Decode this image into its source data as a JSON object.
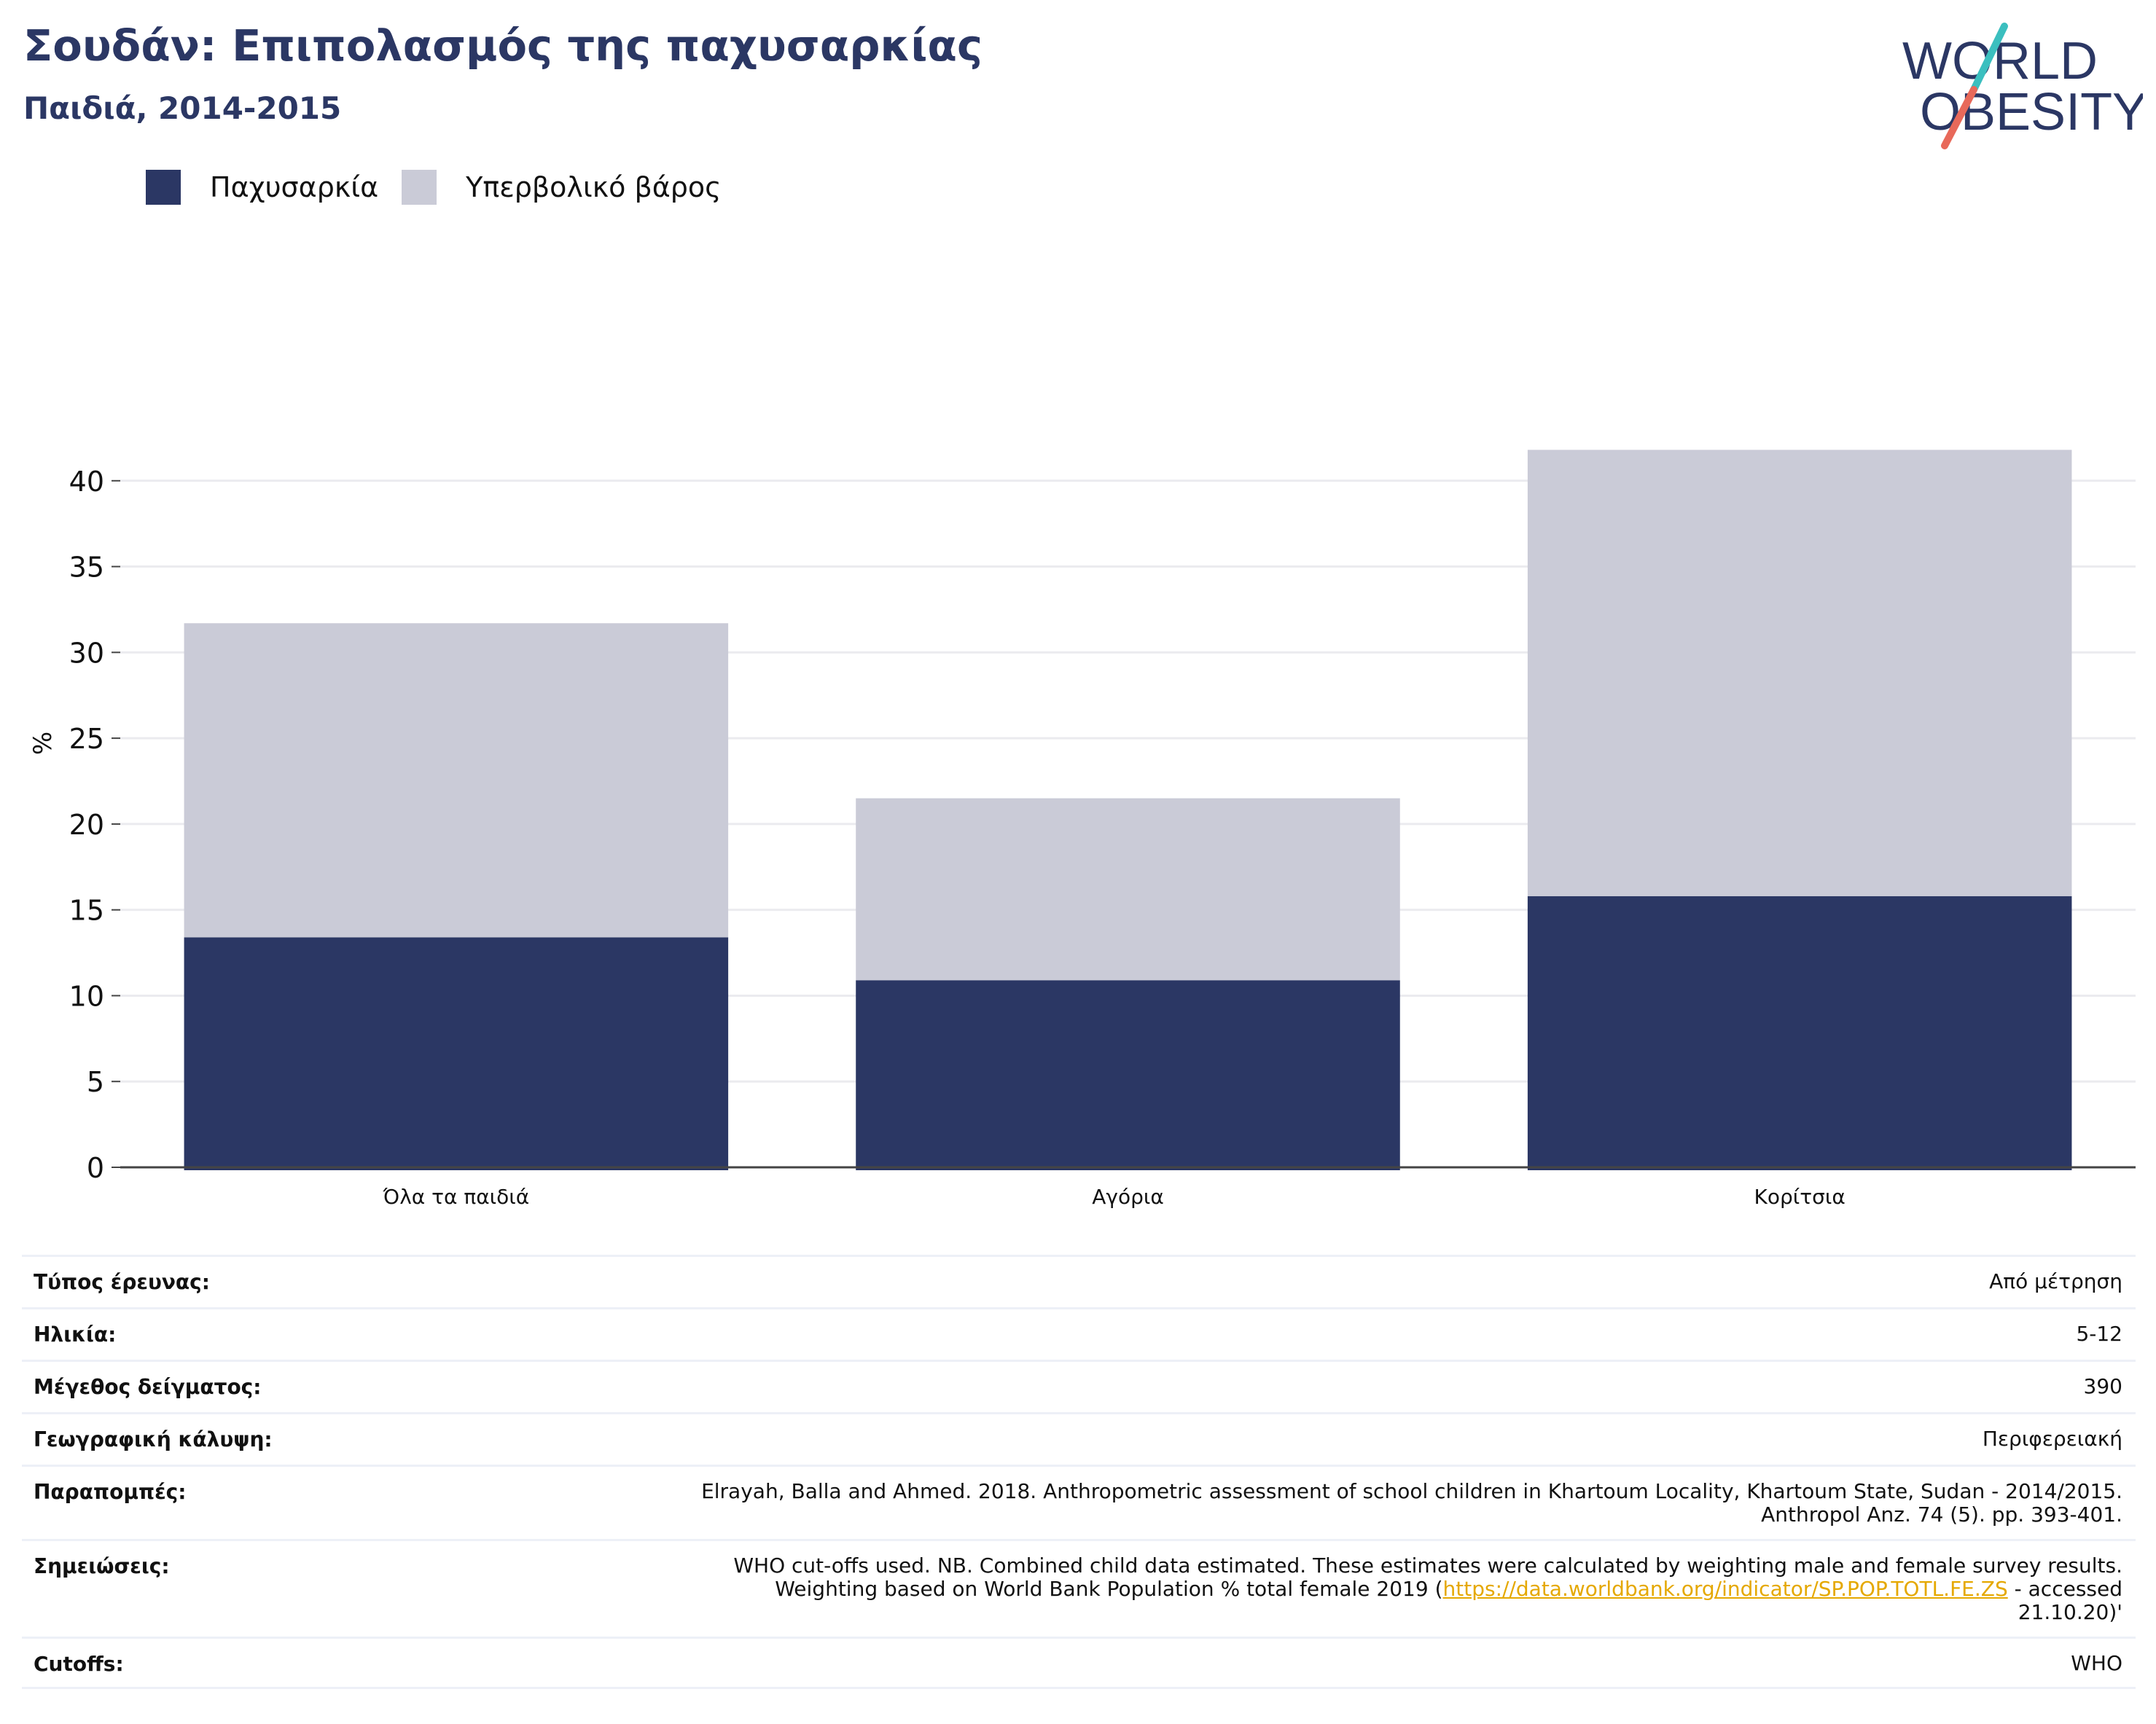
{
  "header": {
    "title": "Σουδάν: Επιπολασμός της παχυσαρκίας",
    "subtitle": "Παιδιά, 2014-2015"
  },
  "logo": {
    "line1": "WORLD",
    "line2": "OBESITY",
    "colors": {
      "text": "#2b3764",
      "slash_top": "#3bbfbf",
      "slash_bottom": "#e8695a"
    }
  },
  "legend": [
    {
      "label": "Παχυσαρκία",
      "color": "#2b3764"
    },
    {
      "label": "Υπερβολικό βάρος",
      "color": "#cacbd7"
    }
  ],
  "chart_data": {
    "type": "bar",
    "stacked": true,
    "categories": [
      "Όλα τα παιδιά",
      "Αγόρια",
      "Κορίτσια"
    ],
    "series": [
      {
        "name": "Παχυσαρκία",
        "color": "#2b3764",
        "values": [
          13.4,
          10.9,
          15.8
        ]
      },
      {
        "name": "Υπερβολικό βάρος",
        "color": "#cacbd7",
        "values": [
          18.3,
          10.6,
          26.0
        ]
      }
    ],
    "ylabel": "%",
    "ylim": [
      0,
      45
    ],
    "yticks": [
      0,
      5,
      10,
      15,
      20,
      25,
      30,
      35,
      40
    ],
    "grid": true,
    "legend_position": "top-left"
  },
  "meta": {
    "survey_type": {
      "label": "Τύπος έρευνας:",
      "value": "Από μέτρηση"
    },
    "age": {
      "label": "Ηλικία:",
      "value": "5-12"
    },
    "sample_size": {
      "label": "Μέγεθος δείγματος:",
      "value": "390"
    },
    "coverage": {
      "label": "Γεωγραφική κάλυψη:",
      "value": "Περιφερειακή"
    },
    "references": {
      "label": "Παραπομπές:",
      "line1": "Elrayah, Balla and Ahmed. 2018. Anthropometric assessment of school children in Khartoum Locality, Khartoum State, Sudan - 2014/2015.",
      "line2": "Anthropol Anz. 74 (5). pp. 393-401."
    },
    "notes": {
      "label": "Σημειώσεις:",
      "line1": "WHO cut-offs used. NB. Combined child data estimated. These estimates were calculated by weighting male and female survey results.",
      "line2_pre": "Weighting based on World Bank Population % total female 2019 (",
      "link": "https://data.worldbank.org/indicator/SP.POP.TOTL.FE.ZS",
      "line2_post": " - accessed",
      "line3": "21.10.20)'"
    },
    "cutoffs": {
      "label": "Cutoffs:",
      "value": "WHO"
    }
  }
}
